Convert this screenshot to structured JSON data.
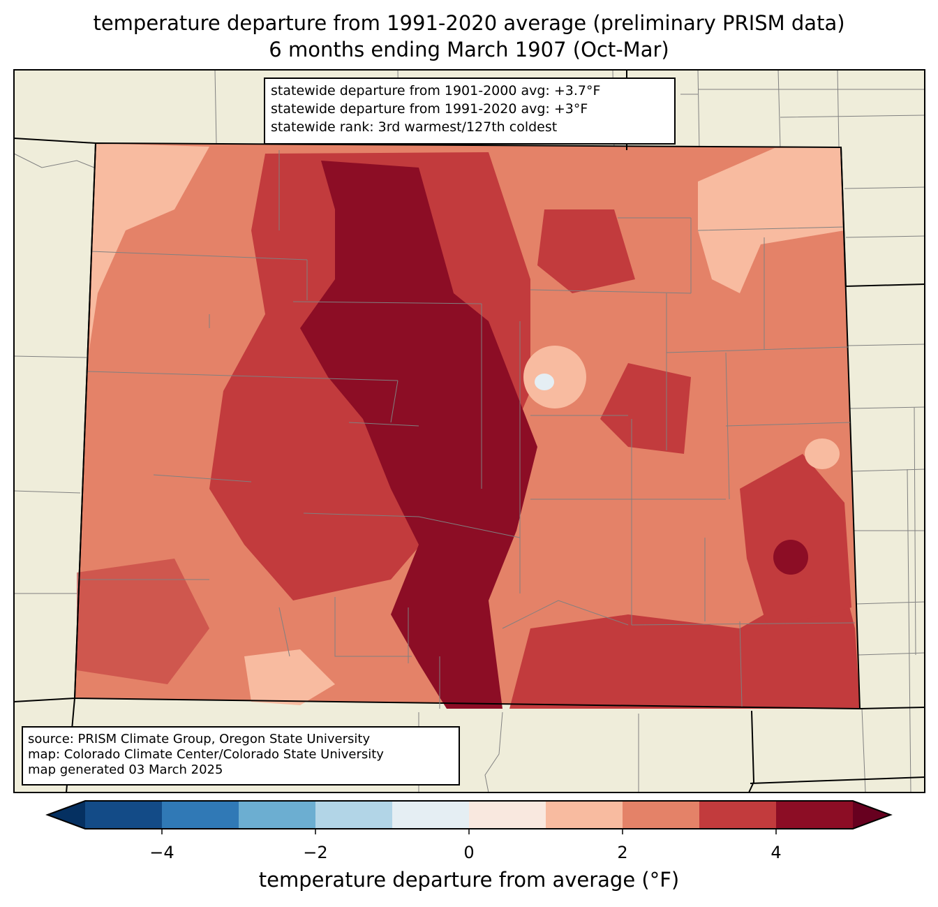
{
  "title": {
    "line1": "temperature departure from 1991-2020 average (preliminary PRISM data)",
    "line2": "6 months ending March 1907 (Oct-Mar)"
  },
  "stats_box": {
    "line1": "statewide departure from 1901-2000 avg: +3.7°F",
    "line2": "statewide departure from 1991-2020 avg: +3°F",
    "line3": "statewide rank: 3rd warmest/127th coldest"
  },
  "source_box": {
    "line1": "source: PRISM Climate Group, Oregon State University",
    "line2": "map: Colorado Climate Center/Colorado State University",
    "line3": "map generated 03 March 2025"
  },
  "colorbar": {
    "label": "temperature departure from average (°F)",
    "levels": [
      -5,
      -4,
      -3,
      -2,
      -1,
      0,
      1,
      2,
      3,
      4,
      5
    ],
    "colors": [
      "#134b87",
      "#3079b6",
      "#6caed1",
      "#b2d5e7",
      "#e5eef3",
      "#f9e8df",
      "#f8bba0",
      "#e48268",
      "#c23b3d",
      "#8c0d25"
    ],
    "under_color": "#053061",
    "over_color": "#67001f",
    "ticks": [
      -4,
      -2,
      0,
      2,
      4
    ],
    "tick_labels": [
      "−4",
      "−2",
      "0",
      "2",
      "4"
    ]
  },
  "map_colors": {
    "land": "#efedda",
    "county_line": "#808080"
  }
}
